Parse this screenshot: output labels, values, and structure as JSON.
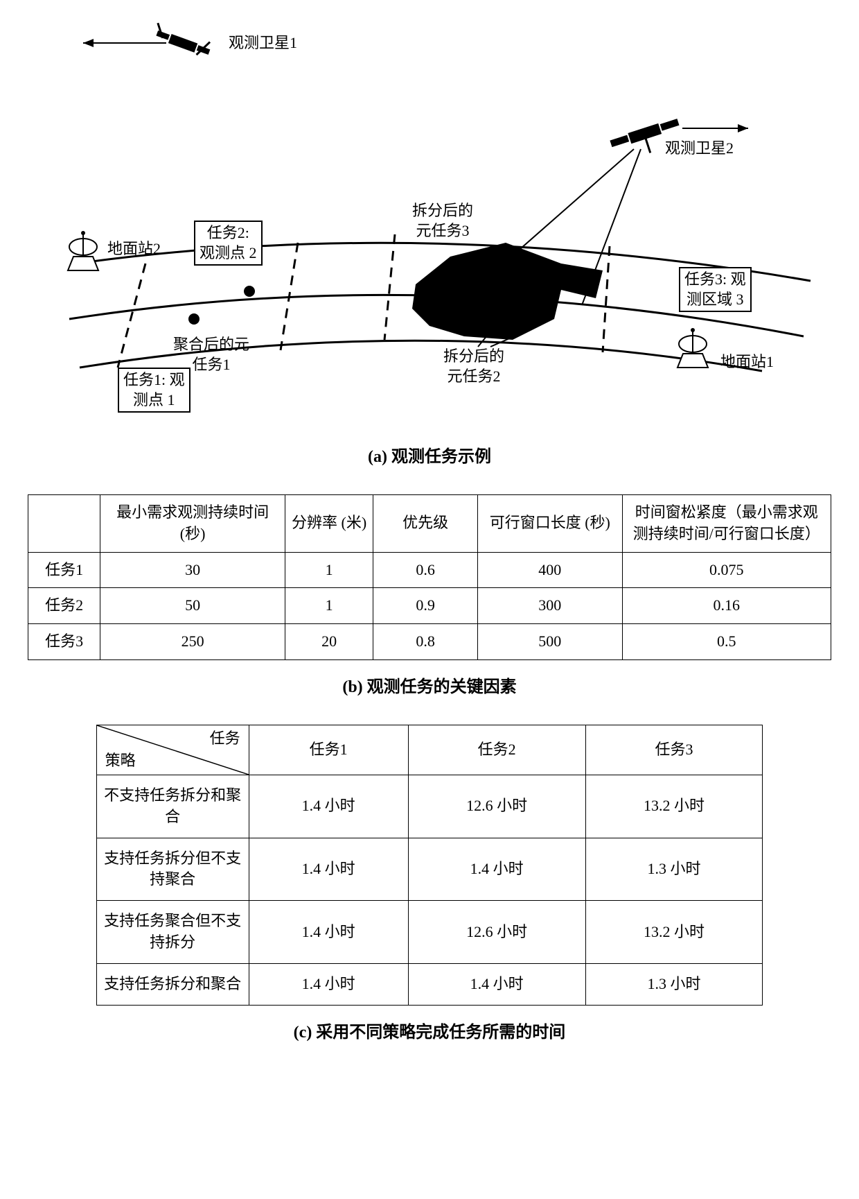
{
  "diagram": {
    "sat1_label": "观测卫星1",
    "sat2_label": "观测卫星2",
    "ground1_label": "地面站1",
    "ground2_label": "地面站2",
    "task1_box": "任务1: 观\n测点 1",
    "task2_box": "任务2:\n观测点 2",
    "task3_box": "任务3: 观\n测区域 3",
    "aggregated_label": "聚合后的元\n任务1",
    "split2_label": "拆分后的\n元任务2",
    "split3_label": "拆分后的\n元任务3",
    "colors": {
      "stroke": "#000000",
      "fill_black": "#000000",
      "bg": "#ffffff"
    }
  },
  "caption_a": "(a) 观测任务示例",
  "table_b": {
    "headers": [
      "",
      "最小需求观测持续时间 (秒)",
      "分辨率 (米)",
      "优先级",
      "可行窗口长度  (秒)",
      "时间窗松紧度（最小需求观测持续时间/可行窗口长度）"
    ],
    "rows": [
      [
        "任务1",
        "30",
        "1",
        "0.6",
        "400",
        "0.075"
      ],
      [
        "任务2",
        "50",
        "1",
        "0.9",
        "300",
        "0.16"
      ],
      [
        "任务3",
        "250",
        "20",
        "0.8",
        "500",
        "0.5"
      ]
    ],
    "col_widths": [
      "9%",
      "23%",
      "11%",
      "13%",
      "18%",
      "26%"
    ]
  },
  "caption_b": "(b) 观测任务的关键因素",
  "table_c": {
    "diag_top": "任务",
    "diag_bottom": "策略",
    "col_headers": [
      "任务1",
      "任务2",
      "任务3"
    ],
    "rows": [
      [
        "不支持任务拆分和聚合",
        "1.4 小时",
        "12.6 小时",
        "13.2 小时"
      ],
      [
        "支持任务拆分但不支持聚合",
        "1.4 小时",
        "1.4 小时",
        "1.3 小时"
      ],
      [
        "支持任务聚合但不支持拆分",
        "1.4 小时",
        "12.6 小时",
        "13.2 小时"
      ],
      [
        "支持任务拆分和聚合",
        "1.4 小时",
        "1.4 小时",
        "1.3 小时"
      ]
    ]
  },
  "caption_c": "(c) 采用不同策略完成任务所需的时间"
}
